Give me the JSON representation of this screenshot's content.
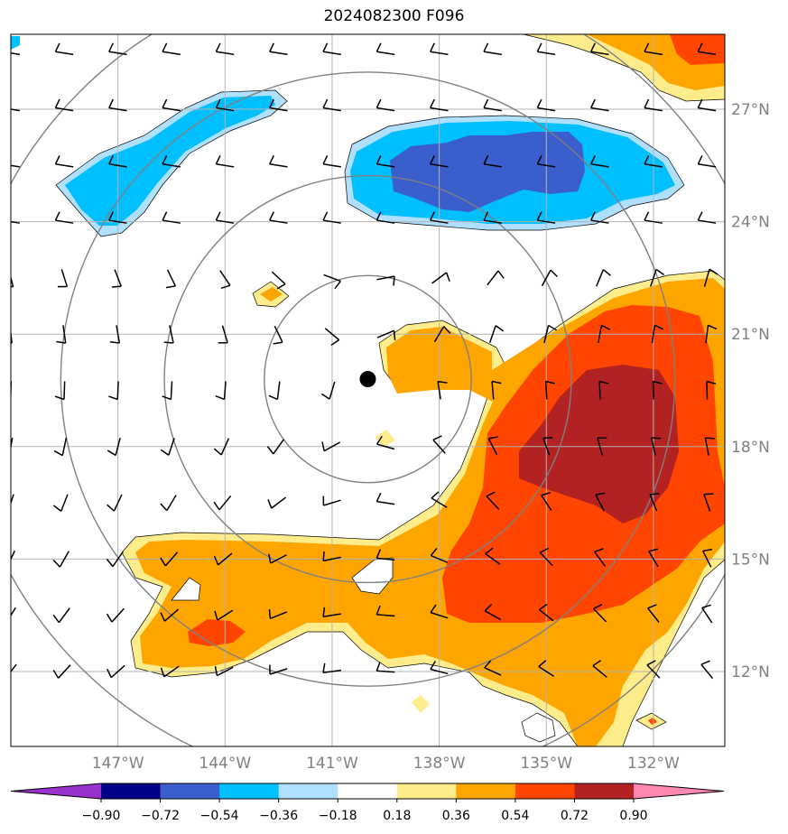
{
  "title": "2024082300 F096",
  "map": {
    "lon_range": [
      -150,
      -130
    ],
    "lat_range": [
      10,
      29
    ],
    "lon_ticks": [
      {
        "value": -147,
        "label": "147°W"
      },
      {
        "value": -144,
        "label": "144°W"
      },
      {
        "value": -141,
        "label": "141°W"
      },
      {
        "value": -138,
        "label": "138°W"
      },
      {
        "value": -135,
        "label": "135°W"
      },
      {
        "value": -132,
        "label": "132°W"
      }
    ],
    "lat_ticks": [
      {
        "value": 27,
        "label": "27°N"
      },
      {
        "value": 24,
        "label": "24°N"
      },
      {
        "value": 21,
        "label": "21°N"
      },
      {
        "value": 18,
        "label": "18°N"
      },
      {
        "value": 15,
        "label": "15°N"
      },
      {
        "value": 12,
        "label": "12°N"
      }
    ],
    "storm_center": {
      "lon": -140,
      "lat": 19.8
    },
    "range_rings_deg": [
      2.9,
      5.7,
      8.6,
      11.4
    ],
    "grid": true,
    "colors": {
      "grid": "#b3b3b3",
      "ring": "#808080",
      "tick_text": "#808080",
      "contour_line": "#000000"
    }
  },
  "colorbar": {
    "labels": [
      "−0.90",
      "−0.72",
      "−0.54",
      "−0.36",
      "−0.18",
      "0.18",
      "0.36",
      "0.54",
      "0.72",
      "0.90"
    ],
    "colors": [
      "#9932cc",
      "#00008b",
      "#3a5fcd",
      "#00bfff",
      "#b0e0ff",
      "#ffffff",
      "#ffec8b",
      "#ffa500",
      "#ff4500",
      "#b22222",
      "#ff88b0"
    ]
  },
  "fill_levels": {
    "neg1": "#b0e0ff",
    "neg2": "#00bfff",
    "neg3": "#3a5fcd",
    "pos1": "#ffec8b",
    "pos2": "#ffa500",
    "pos3": "#ff4500",
    "pos4": "#b22222"
  }
}
